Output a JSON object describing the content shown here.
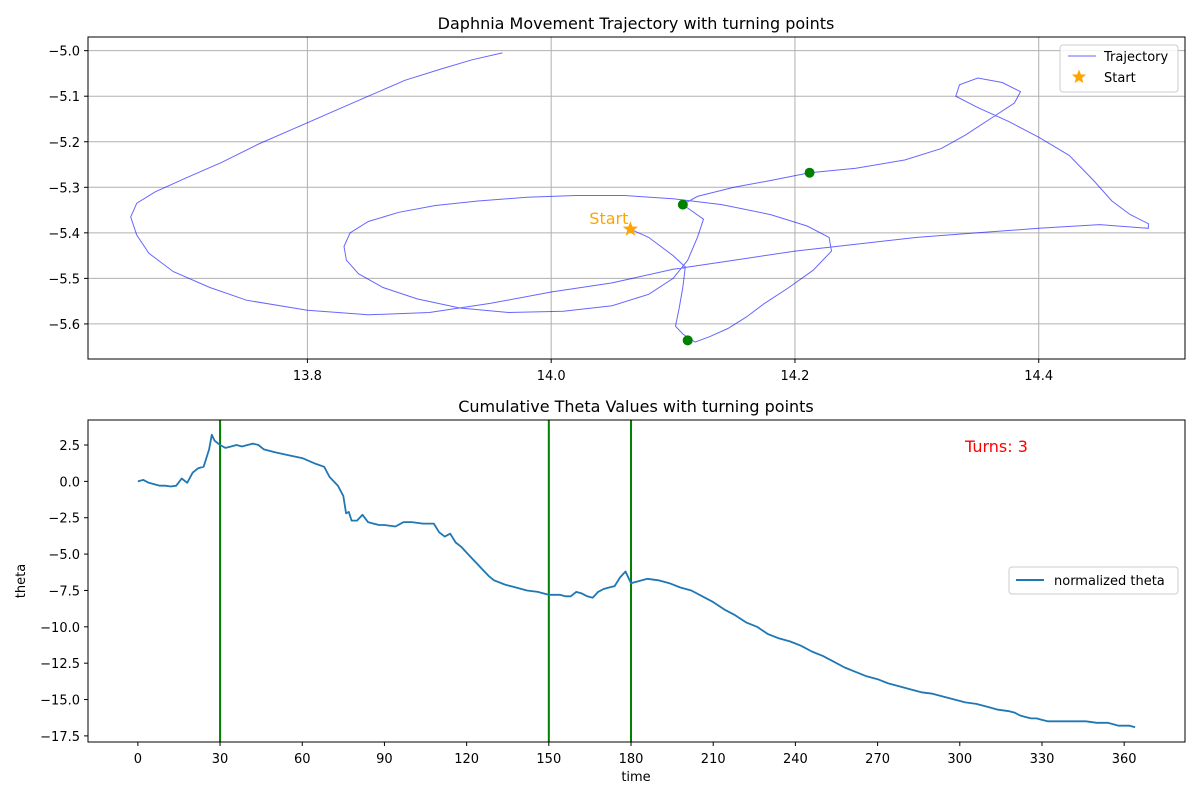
{
  "chart_data": [
    {
      "type": "line",
      "title": "Daphnia Movement Trajectory with turning points",
      "xlabel": "",
      "ylabel": "",
      "xlim": [
        13.62,
        14.52
      ],
      "ylim": [
        -5.677,
        -4.97
      ],
      "xticks": [
        13.8,
        14.0,
        14.2,
        14.4
      ],
      "xtick_labels": [
        "13.8",
        "14.0",
        "14.2",
        "14.4"
      ],
      "yticks": [
        -5.0,
        -5.1,
        -5.2,
        -5.3,
        -5.4,
        -5.5,
        -5.6
      ],
      "ytick_labels": [
        "−5.0",
        "−5.1",
        "−5.2",
        "−5.3",
        "−5.4",
        "−5.5",
        "−5.6"
      ],
      "grid": true,
      "legend_position": "top-right",
      "legend": [
        "Trajectory",
        "Start"
      ],
      "series": [
        {
          "name": "Trajectory",
          "color": "#0000ff",
          "points": [
            [
              14.065,
              -5.392
            ],
            [
              14.08,
              -5.41
            ],
            [
              14.09,
              -5.43
            ],
            [
              14.1,
              -5.45
            ],
            [
              14.11,
              -5.475
            ],
            [
              14.108,
              -5.52
            ],
            [
              14.105,
              -5.565
            ],
            [
              14.102,
              -5.605
            ],
            [
              14.108,
              -5.622
            ],
            [
              14.118,
              -5.64
            ],
            [
              14.13,
              -5.628
            ],
            [
              14.145,
              -5.61
            ],
            [
              14.16,
              -5.585
            ],
            [
              14.175,
              -5.555
            ],
            [
              14.195,
              -5.52
            ],
            [
              14.215,
              -5.482
            ],
            [
              14.23,
              -5.44
            ],
            [
              14.228,
              -5.41
            ],
            [
              14.21,
              -5.385
            ],
            [
              14.18,
              -5.36
            ],
            [
              14.14,
              -5.338
            ],
            [
              14.1,
              -5.325
            ],
            [
              14.06,
              -5.318
            ],
            [
              14.02,
              -5.318
            ],
            [
              13.98,
              -5.322
            ],
            [
              13.94,
              -5.33
            ],
            [
              13.905,
              -5.34
            ],
            [
              13.875,
              -5.355
            ],
            [
              13.85,
              -5.375
            ],
            [
              13.835,
              -5.4
            ],
            [
              13.83,
              -5.43
            ],
            [
              13.832,
              -5.46
            ],
            [
              13.842,
              -5.49
            ],
            [
              13.862,
              -5.52
            ],
            [
              13.89,
              -5.545
            ],
            [
              13.925,
              -5.565
            ],
            [
              13.965,
              -5.575
            ],
            [
              14.01,
              -5.572
            ],
            [
              14.05,
              -5.56
            ],
            [
              14.08,
              -5.535
            ],
            [
              14.1,
              -5.5
            ],
            [
              14.112,
              -5.46
            ],
            [
              14.12,
              -5.41
            ],
            [
              14.125,
              -5.37
            ],
            [
              14.108,
              -5.338
            ],
            [
              14.12,
              -5.32
            ],
            [
              14.15,
              -5.3
            ],
            [
              14.18,
              -5.285
            ],
            [
              14.212,
              -5.268
            ],
            [
              14.25,
              -5.258
            ],
            [
              14.29,
              -5.24
            ],
            [
              14.32,
              -5.215
            ],
            [
              14.34,
              -5.185
            ],
            [
              14.36,
              -5.15
            ],
            [
              14.38,
              -5.115
            ],
            [
              14.385,
              -5.09
            ],
            [
              14.37,
              -5.07
            ],
            [
              14.35,
              -5.06
            ],
            [
              14.335,
              -5.075
            ],
            [
              14.332,
              -5.1
            ],
            [
              14.35,
              -5.125
            ],
            [
              14.375,
              -5.155
            ],
            [
              14.4,
              -5.19
            ],
            [
              14.425,
              -5.23
            ],
            [
              14.445,
              -5.285
            ],
            [
              14.46,
              -5.33
            ],
            [
              14.475,
              -5.36
            ],
            [
              14.49,
              -5.38
            ],
            [
              14.49,
              -5.39
            ],
            [
              14.45,
              -5.382
            ],
            [
              14.4,
              -5.39
            ],
            [
              14.35,
              -5.4
            ],
            [
              14.3,
              -5.41
            ],
            [
              14.25,
              -5.425
            ],
            [
              14.2,
              -5.44
            ],
            [
              14.15,
              -5.46
            ],
            [
              14.1,
              -5.48
            ],
            [
              14.05,
              -5.51
            ],
            [
              14.0,
              -5.53
            ],
            [
              13.95,
              -5.555
            ],
            [
              13.9,
              -5.575
            ],
            [
              13.85,
              -5.58
            ],
            [
              13.8,
              -5.57
            ],
            [
              13.75,
              -5.548
            ],
            [
              13.72,
              -5.52
            ],
            [
              13.69,
              -5.485
            ],
            [
              13.67,
              -5.445
            ],
            [
              13.66,
              -5.405
            ],
            [
              13.655,
              -5.365
            ],
            [
              13.66,
              -5.335
            ],
            [
              13.675,
              -5.31
            ],
            [
              13.7,
              -5.28
            ],
            [
              13.73,
              -5.245
            ],
            [
              13.76,
              -5.205
            ],
            [
              13.79,
              -5.17
            ],
            [
              13.82,
              -5.135
            ],
            [
              13.85,
              -5.1
            ],
            [
              13.88,
              -5.065
            ],
            [
              13.91,
              -5.04
            ],
            [
              13.935,
              -5.02
            ],
            [
              13.96,
              -5.005
            ]
          ]
        }
      ],
      "start": {
        "label": "Start",
        "x": 14.065,
        "y": -5.392,
        "color": "#ffa500"
      },
      "turning_points": [
        {
          "x": 14.108,
          "y": -5.338
        },
        {
          "x": 14.212,
          "y": -5.268
        },
        {
          "x": 14.112,
          "y": -5.636
        }
      ],
      "turning_point_color": "#008000"
    },
    {
      "type": "line",
      "title": "Cumulative Theta Values with turning points",
      "xlabel": "time",
      "ylabel": "theta",
      "xlim": [
        -18.2,
        382.2
      ],
      "ylim": [
        -17.92,
        4.22
      ],
      "xticks": [
        0,
        30,
        60,
        90,
        120,
        150,
        180,
        210,
        240,
        270,
        300,
        330,
        360
      ],
      "xtick_labels": [
        "0",
        "30",
        "60",
        "90",
        "120",
        "150",
        "180",
        "210",
        "240",
        "270",
        "300",
        "330",
        "360"
      ],
      "yticks": [
        2.5,
        0.0,
        -2.5,
        -5.0,
        -7.5,
        -10.0,
        -12.5,
        -15.0,
        -17.5
      ],
      "ytick_labels": [
        "2.5",
        "0.0",
        "−2.5",
        "−5.0",
        "−7.5",
        "−10.0",
        "−12.5",
        "−15.0",
        "−17.5"
      ],
      "grid": false,
      "legend_position": "center-right",
      "legend": [
        "normalized theta"
      ],
      "annotation": "Turns: 3",
      "annotation_color": "#ff0000",
      "turn_lines": [
        30,
        150,
        180
      ],
      "turn_line_color": "#008000",
      "series": [
        {
          "name": "normalized theta",
          "color": "#1f77b4",
          "x": [
            0,
            2,
            4,
            6,
            8,
            10,
            12,
            14,
            16,
            18,
            20,
            22,
            24,
            26,
            27,
            28,
            30,
            32,
            34,
            36,
            38,
            40,
            42,
            44,
            46,
            50,
            55,
            60,
            65,
            68,
            70,
            73,
            75,
            76,
            77,
            78,
            80,
            82,
            84,
            86,
            88,
            90,
            94,
            97,
            100,
            104,
            108,
            110,
            112,
            114,
            116,
            118,
            120,
            122,
            124,
            126,
            128,
            130,
            134,
            138,
            142,
            146,
            148,
            150,
            152,
            154,
            156,
            158,
            160,
            162,
            164,
            166,
            168,
            170,
            172,
            174,
            176,
            178,
            180,
            182,
            184,
            186,
            190,
            194,
            198,
            202,
            206,
            210,
            214,
            218,
            222,
            226,
            230,
            234,
            238,
            242,
            246,
            250,
            254,
            258,
            262,
            266,
            270,
            274,
            278,
            282,
            286,
            290,
            294,
            298,
            302,
            306,
            310,
            314,
            318,
            320,
            322,
            324,
            326,
            328,
            330,
            332,
            334,
            338,
            342,
            346,
            350,
            354,
            358,
            360,
            362,
            364
          ],
          "y": [
            0.0,
            0.1,
            -0.1,
            -0.2,
            -0.3,
            -0.3,
            -0.35,
            -0.3,
            0.2,
            -0.1,
            0.6,
            0.9,
            1.0,
            2.2,
            3.2,
            2.8,
            2.5,
            2.3,
            2.4,
            2.5,
            2.4,
            2.5,
            2.6,
            2.5,
            2.2,
            2.0,
            1.8,
            1.6,
            1.2,
            1.0,
            0.3,
            -0.3,
            -1.0,
            -2.2,
            -2.1,
            -2.7,
            -2.7,
            -2.3,
            -2.8,
            -2.9,
            -3.0,
            -3.0,
            -3.1,
            -2.8,
            -2.8,
            -2.9,
            -2.9,
            -3.5,
            -3.8,
            -3.6,
            -4.2,
            -4.5,
            -4.9,
            -5.3,
            -5.7,
            -6.1,
            -6.5,
            -6.8,
            -7.1,
            -7.3,
            -7.5,
            -7.6,
            -7.7,
            -7.8,
            -7.8,
            -7.8,
            -7.9,
            -7.9,
            -7.6,
            -7.7,
            -7.9,
            -8.0,
            -7.6,
            -7.4,
            -7.3,
            -7.2,
            -6.6,
            -6.2,
            -7.0,
            -6.9,
            -6.8,
            -6.7,
            -6.8,
            -7.0,
            -7.3,
            -7.5,
            -7.9,
            -8.3,
            -8.8,
            -9.2,
            -9.7,
            -10.0,
            -10.5,
            -10.8,
            -11.0,
            -11.3,
            -11.7,
            -12.0,
            -12.4,
            -12.8,
            -13.1,
            -13.4,
            -13.6,
            -13.9,
            -14.1,
            -14.3,
            -14.5,
            -14.6,
            -14.8,
            -15.0,
            -15.2,
            -15.3,
            -15.5,
            -15.7,
            -15.8,
            -15.9,
            -16.1,
            -16.2,
            -16.3,
            -16.3,
            -16.4,
            -16.5,
            -16.5,
            -16.5,
            -16.5,
            -16.5,
            -16.6,
            -16.6,
            -16.8,
            -16.8,
            -16.8,
            -16.9
          ]
        }
      ]
    }
  ]
}
